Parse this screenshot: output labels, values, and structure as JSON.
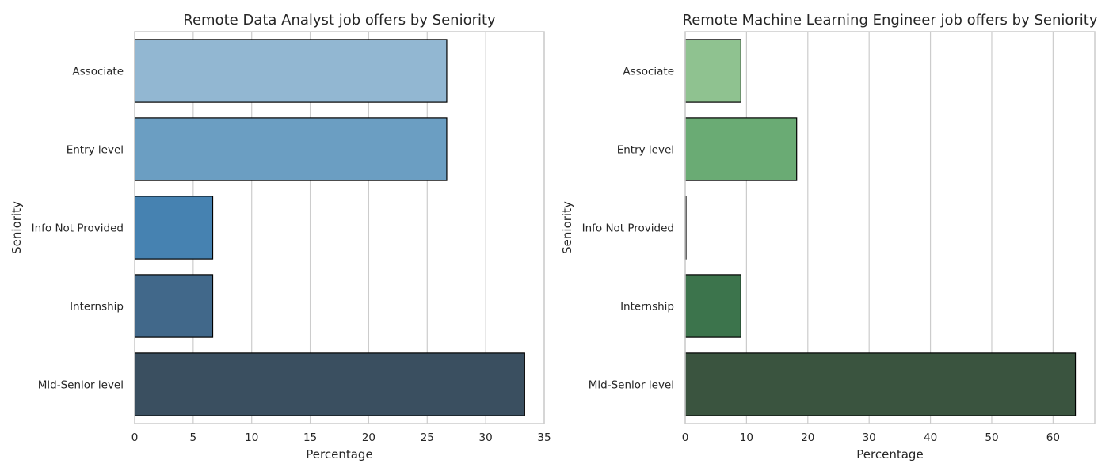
{
  "chart_data": [
    {
      "type": "bar",
      "orientation": "horizontal",
      "title": "Remote Data Analyst job offers by Seniority",
      "xlabel": "Percentage",
      "ylabel": "Seniority",
      "categories": [
        "Associate",
        "Entry level",
        "Info Not Provided",
        "Internship",
        "Mid-Senior level"
      ],
      "values": [
        26.67,
        26.67,
        6.67,
        6.67,
        33.33
      ],
      "colors": [
        "#92b7d2",
        "#6b9ec2",
        "#4682b1",
        "#41688a",
        "#3a4f60"
      ],
      "xlim": [
        0,
        35
      ],
      "xticks": [
        "0",
        "5",
        "10",
        "15",
        "20",
        "25",
        "30",
        "35"
      ],
      "grid": "vertical"
    },
    {
      "type": "bar",
      "orientation": "horizontal",
      "title": "Remote Machine Learning Engineer job offers by Seniority",
      "xlabel": "Percentage",
      "ylabel": "Seniority",
      "categories": [
        "Associate",
        "Entry level",
        "Info Not Provided",
        "Internship",
        "Mid-Senior level"
      ],
      "values": [
        9.09,
        18.18,
        0,
        9.09,
        63.64
      ],
      "colors": [
        "#8fc290",
        "#6aab74",
        "#4c9162",
        "#3c744c",
        "#3a543f"
      ],
      "xlim": [
        0,
        66.8
      ],
      "xticks": [
        "0",
        "10",
        "20",
        "30",
        "40",
        "50",
        "60"
      ],
      "grid": "vertical"
    }
  ]
}
